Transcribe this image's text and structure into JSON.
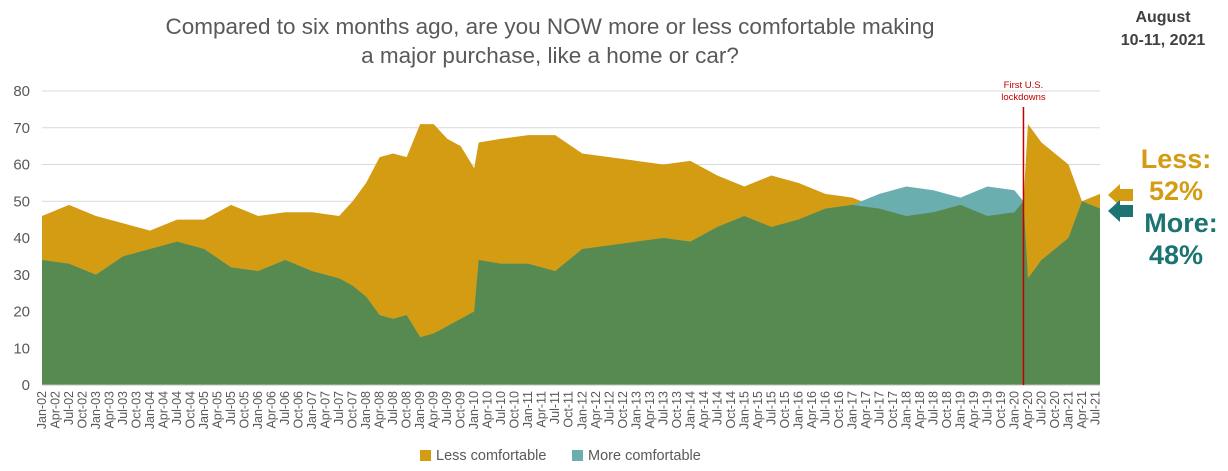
{
  "title_line1": "Compared to six months ago, are you NOW more or less comfortable making",
  "title_line2": "a major purchase, like a home or car?",
  "date_line1": "August",
  "date_line2": "10-11, 2021",
  "callouts": {
    "less_name": "Less:",
    "less_pct": "52%",
    "more_name": "More:",
    "more_pct": "48%"
  },
  "colors": {
    "less": "#d39c12",
    "more": "#6baeb0",
    "base": "#578a50",
    "lockdown_line": "#c00000",
    "less_text": "#d39c12",
    "more_text": "#1b7471"
  },
  "chart_data": {
    "type": "area",
    "ylim": [
      0,
      80
    ],
    "yticks": [
      0,
      10,
      20,
      30,
      40,
      50,
      60,
      70,
      80
    ],
    "grid": true,
    "legend_position": "bottom",
    "x_tick_labels": [
      "Jan-02",
      "Apr-02",
      "Jul-02",
      "Oct-02",
      "Jan-03",
      "Apr-03",
      "Jul-03",
      "Oct-03",
      "Jan-04",
      "Apr-04",
      "Jul-04",
      "Oct-04",
      "Jan-05",
      "Apr-05",
      "Jul-05",
      "Oct-05",
      "Jan-06",
      "Apr-06",
      "Jul-06",
      "Oct-06",
      "Jan-07",
      "Apr-07",
      "Jul-07",
      "Oct-07",
      "Jan-08",
      "Apr-08",
      "Jul-08",
      "Oct-08",
      "Jan-09",
      "Apr-09",
      "Jul-09",
      "Oct-09",
      "Jan-10",
      "Apr-10",
      "Jul-10",
      "Oct-10",
      "Jan-11",
      "Apr-11",
      "Jul-11",
      "Oct-11",
      "Jan-12",
      "Apr-12",
      "Jul-12",
      "Oct-12",
      "Jan-13",
      "Apr-13",
      "Jul-13",
      "Oct-13",
      "Jan-14",
      "Apr-14",
      "Jul-14",
      "Oct-14",
      "Jan-15",
      "Apr-15",
      "Jul-15",
      "Oct-15",
      "Jan-16",
      "Apr-16",
      "Jul-16",
      "Oct-16",
      "Jan-17",
      "Apr-17",
      "Jul-17",
      "Oct-17",
      "Jan-18",
      "Apr-18",
      "Jul-18",
      "Oct-18",
      "Jan-19",
      "Apr-19",
      "Jul-19",
      "Oct-19",
      "Jan-20",
      "Apr-20",
      "Jul-20",
      "Oct-20",
      "Jan-21",
      "Apr-21",
      "Jul-21"
    ],
    "series": [
      {
        "name": "Less comfortable",
        "points": [
          [
            "Jan-02",
            46
          ],
          [
            "Jul-02",
            49
          ],
          [
            "Jan-03",
            46
          ],
          [
            "Jul-03",
            44
          ],
          [
            "Jan-04",
            42
          ],
          [
            "Jul-04",
            45
          ],
          [
            "Jan-05",
            45
          ],
          [
            "Jul-05",
            49
          ],
          [
            "Jan-06",
            46
          ],
          [
            "Jul-06",
            47
          ],
          [
            "Jan-07",
            47
          ],
          [
            "Jul-07",
            46
          ],
          [
            "Oct-07",
            50
          ],
          [
            "Jan-08",
            55
          ],
          [
            "Apr-08",
            62
          ],
          [
            "Jul-08",
            63
          ],
          [
            "Oct-08",
            62
          ],
          [
            "Jan-09",
            71
          ],
          [
            "Apr-09",
            71
          ],
          [
            "Jul-09",
            67
          ],
          [
            "Oct-09",
            65
          ],
          [
            "Jan-10",
            59
          ],
          [
            "Feb-10",
            66
          ],
          [
            "Jul-10",
            67
          ],
          [
            "Jan-11",
            68
          ],
          [
            "Jul-11",
            68
          ],
          [
            "Jan-12",
            63
          ],
          [
            "Jul-12",
            62
          ],
          [
            "Jan-13",
            61
          ],
          [
            "Jul-13",
            60
          ],
          [
            "Jan-14",
            61
          ],
          [
            "Jul-14",
            57
          ],
          [
            "Jan-15",
            54
          ],
          [
            "Jul-15",
            57
          ],
          [
            "Jan-16",
            55
          ],
          [
            "Jul-16",
            52
          ],
          [
            "Jan-17",
            51
          ],
          [
            "Jul-17",
            48
          ],
          [
            "Jan-18",
            46
          ],
          [
            "Jul-18",
            47
          ],
          [
            "Jan-19",
            49
          ],
          [
            "Jul-19",
            46
          ],
          [
            "Jan-20",
            47
          ],
          [
            "Mar-20",
            50
          ],
          [
            "Apr-20",
            71
          ],
          [
            "Jul-20",
            66
          ],
          [
            "Oct-20",
            63
          ],
          [
            "Jan-21",
            60
          ],
          [
            "Apr-21",
            50
          ],
          [
            "Aug-21",
            52
          ]
        ]
      },
      {
        "name": "More comfortable",
        "points": [
          [
            "Jan-02",
            34
          ],
          [
            "Jul-02",
            33
          ],
          [
            "Jan-03",
            30
          ],
          [
            "Jul-03",
            35
          ],
          [
            "Jan-04",
            37
          ],
          [
            "Jul-04",
            39
          ],
          [
            "Jan-05",
            37
          ],
          [
            "Jul-05",
            32
          ],
          [
            "Jan-06",
            31
          ],
          [
            "Jul-06",
            34
          ],
          [
            "Jan-07",
            31
          ],
          [
            "Jul-07",
            29
          ],
          [
            "Oct-07",
            27
          ],
          [
            "Jan-08",
            24
          ],
          [
            "Apr-08",
            19
          ],
          [
            "Jul-08",
            18
          ],
          [
            "Oct-08",
            19
          ],
          [
            "Jan-09",
            13
          ],
          [
            "Apr-09",
            14
          ],
          [
            "Jul-09",
            16
          ],
          [
            "Oct-09",
            18
          ],
          [
            "Jan-10",
            20
          ],
          [
            "Feb-10",
            34
          ],
          [
            "Jul-10",
            33
          ],
          [
            "Jan-11",
            33
          ],
          [
            "Jul-11",
            31
          ],
          [
            "Jan-12",
            37
          ],
          [
            "Jul-12",
            38
          ],
          [
            "Jan-13",
            39
          ],
          [
            "Jul-13",
            40
          ],
          [
            "Jan-14",
            39
          ],
          [
            "Jul-14",
            43
          ],
          [
            "Jan-15",
            46
          ],
          [
            "Jul-15",
            43
          ],
          [
            "Jan-16",
            45
          ],
          [
            "Jul-16",
            48
          ],
          [
            "Jan-17",
            49
          ],
          [
            "Jul-17",
            52
          ],
          [
            "Jan-18",
            54
          ],
          [
            "Jul-18",
            53
          ],
          [
            "Jan-19",
            51
          ],
          [
            "Jul-19",
            54
          ],
          [
            "Jan-20",
            53
          ],
          [
            "Mar-20",
            50
          ],
          [
            "Apr-20",
            29
          ],
          [
            "Jul-20",
            34
          ],
          [
            "Oct-20",
            37
          ],
          [
            "Jan-21",
            40
          ],
          [
            "Apr-21",
            50
          ],
          [
            "Aug-21",
            48
          ]
        ]
      }
    ],
    "annotation": {
      "text_line1": "First U.S.",
      "text_line2": "lockdowns",
      "x": "Mar-20"
    }
  }
}
